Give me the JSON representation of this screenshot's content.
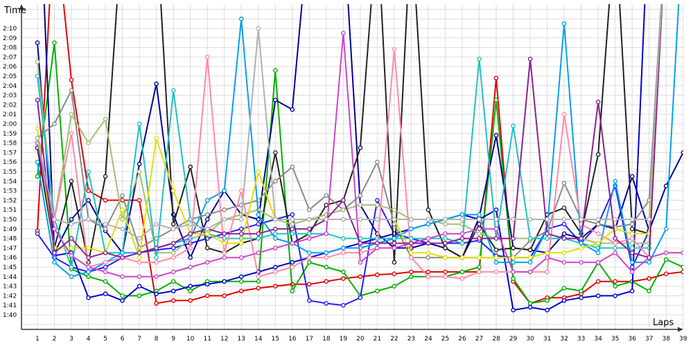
{
  "chart_data": {
    "type": "line",
    "title": "",
    "xlabel": "Laps",
    "ylabel": "Time",
    "grid": true,
    "legend": "none",
    "x": [
      1,
      2,
      3,
      4,
      5,
      6,
      7,
      8,
      9,
      10,
      11,
      12,
      13,
      14,
      15,
      16,
      17,
      18,
      19,
      20,
      21,
      22,
      23,
      24,
      25,
      26,
      27,
      28,
      29,
      30,
      31,
      32,
      33,
      34,
      35,
      36,
      37,
      38,
      39
    ],
    "x_ticks": [
      "1",
      "2",
      "3",
      "4",
      "5",
      "6",
      "7",
      "8",
      "9",
      "10",
      "11",
      "12",
      "13",
      "14",
      "15",
      "16",
      "17",
      "18",
      "19",
      "20",
      "21",
      "22",
      "23",
      "24",
      "25",
      "26",
      "27",
      "28",
      "29",
      "30",
      "31",
      "32",
      "33",
      "34",
      "35",
      "36",
      "37",
      "38",
      "39"
    ],
    "ylim_seconds": [
      93,
      134
    ],
    "y_ticks": [
      "1:40",
      "1:41",
      "1:42",
      "1:43",
      "1:44",
      "1:45",
      "1:46",
      "1:47",
      "1:48",
      "1:49",
      "1:50",
      "1:51",
      "1:52",
      "1:53",
      "1:54",
      "1:55",
      "1:56",
      "1:57",
      "1:58",
      "1:59",
      "2:00",
      "2:01",
      "2:02",
      "2:03",
      "2:04",
      "2:05",
      "2:06",
      "2:07",
      "2:08",
      "2:09",
      "2:10"
    ],
    "y_tick_seconds": [
      100,
      101,
      102,
      103,
      104,
      105,
      106,
      107,
      108,
      109,
      110,
      111,
      112,
      113,
      114,
      115,
      116,
      117,
      118,
      119,
      120,
      121,
      122,
      123,
      124,
      125,
      126,
      127,
      128,
      129,
      130
    ],
    "series": [
      {
        "color": "#e00000",
        "values": [
          108.8,
          142,
          124.6,
          113,
          112,
          112,
          112,
          101.2,
          101.5,
          101.5,
          102,
          102,
          102.5,
          102.8,
          103,
          103.2,
          103.2,
          103.5,
          103.8,
          104,
          104.2,
          104.3,
          104.5,
          104.5,
          104.5,
          104.5,
          104.5,
          124.8,
          103.5,
          101.2,
          101.8,
          101.8,
          102.2,
          103.5,
          103.5,
          103.5,
          103.8,
          104.3,
          104.5
        ]
      },
      {
        "color": "#00b000",
        "values": [
          114.5,
          128.5,
          104.8,
          104,
          103.5,
          102,
          102,
          102.5,
          103.5,
          102.5,
          103.5,
          103.5,
          103.5,
          103.5,
          125.6,
          102.5,
          105.5,
          105,
          104.5,
          102,
          102.5,
          103,
          104,
          104,
          104,
          104.5,
          105,
          122.5,
          103.8,
          101.2,
          101.5,
          102.8,
          102.5,
          105.5,
          103,
          103.5,
          102.5,
          105.8,
          105
        ]
      },
      {
        "color": "#0000cc",
        "values": [
          128.5,
          106.2,
          106.5,
          101.8,
          102.2,
          101.5,
          103,
          102.2,
          102.5,
          103,
          103.2,
          103.5,
          104,
          104.5,
          105,
          105.5,
          106,
          106.5,
          107,
          107.5,
          108,
          108.5,
          109,
          109.5,
          110,
          110.5,
          110,
          111,
          100.5,
          100.8,
          100.5,
          101.5,
          101.8,
          102,
          102,
          102.5,
          143,
          133,
          136.5
        ]
      },
      {
        "color": "#2020ff",
        "values": [
          108.5,
          106,
          105,
          104.5,
          105,
          106,
          106.5,
          106.8,
          107,
          107.5,
          108,
          108.5,
          109,
          109.5,
          110,
          110.5,
          101.5,
          101.2,
          101,
          101.8,
          112,
          108.5,
          108,
          107.5,
          107.5,
          107.5,
          107.8,
          106.2,
          106,
          106,
          109,
          109.5,
          107.5,
          109.5,
          113.5,
          105,
          108.8,
          141,
          141
        ]
      },
      {
        "color": "#000099",
        "values": [
          150,
          106.5,
          110,
          112,
          108.8,
          106.5,
          115.8,
          124.2,
          110.5,
          106,
          110,
          113,
          110.5,
          110,
          122.5,
          121.5,
          141,
          141,
          141,
          111.5,
          108.5,
          107,
          107,
          107.5,
          107,
          106,
          110.2,
          118.8,
          107,
          106.8,
          106.5,
          108.5,
          108,
          109.5,
          109,
          114.5,
          108.8,
          113.5,
          117
        ]
      },
      {
        "color": "#222222",
        "values": [
          117.5,
          107,
          114,
          105.5,
          114.5,
          141,
          141,
          141,
          109.5,
          115.5,
          107,
          106.5,
          107.5,
          108,
          117,
          107.5,
          108.5,
          111.5,
          112,
          117.5,
          141,
          105.5,
          141,
          111,
          107,
          106,
          109.5,
          106.8,
          107,
          106.8,
          110.5,
          111.2,
          108.5,
          116.8,
          141,
          109,
          108.5,
          141,
          141
        ]
      },
      {
        "color": "#8a8a8a",
        "values": [
          118.5,
          120,
          123.5,
          110,
          109,
          112.5,
          107,
          108,
          109,
          110,
          110.5,
          111,
          111.5,
          112,
          114,
          115.5,
          111,
          112.5,
          111,
          112.5,
          116,
          109.5,
          106,
          106,
          106,
          106,
          106,
          106,
          106,
          107.8,
          108.8,
          113.8,
          110,
          109.5,
          109.2,
          109.5,
          112,
          141,
          141
        ]
      },
      {
        "color": "#a0c070",
        "values": [
          126.5,
          110,
          121,
          118,
          120.5,
          110,
          115,
          106.5,
          106.5,
          108,
          108.5,
          110,
          110.5,
          111,
          110,
          109.5,
          110,
          110.5,
          111,
          111.5,
          111.5,
          111,
          110,
          110,
          109.5,
          109.5,
          108.5,
          108,
          108,
          108,
          108,
          108,
          108,
          107.5,
          107.5,
          107.5,
          107.5,
          141,
          141
        ]
      },
      {
        "color": "#20c0c0",
        "values": [
          125,
          110,
          105,
          115,
          106.5,
          106.5,
          120,
          106,
          123.5,
          110,
          108.5,
          108,
          108,
          108,
          108.5,
          108.5,
          108.5,
          108.5,
          108,
          108,
          108,
          108,
          108,
          108,
          108,
          107.5,
          126.8,
          108,
          119.8,
          108,
          108,
          108,
          107.5,
          107,
          107,
          107,
          107,
          141,
          141
        ]
      },
      {
        "color": "#00a0f0",
        "values": [
          116,
          105.5,
          104,
          104.5,
          105.5,
          106.5,
          106.5,
          107,
          107.5,
          108,
          112,
          113,
          131,
          110.5,
          108,
          107.5,
          106.5,
          106.5,
          107,
          107,
          107.5,
          108,
          109,
          109.5,
          110,
          110.5,
          110.5,
          105.5,
          105.5,
          105.5,
          109,
          130.5,
          107.5,
          106.5,
          114,
          105.5,
          105.5,
          109,
          141
        ]
      },
      {
        "color": "#ff88aa",
        "values": [
          118,
          110,
          119,
          105,
          105.5,
          106,
          105.5,
          105.5,
          106,
          107,
          127,
          106.5,
          113,
          104,
          104.5,
          105,
          106,
          106,
          106.5,
          106.5,
          107,
          127.8,
          106,
          104,
          104,
          103.8,
          104.5,
          104.5,
          104.5,
          104.5,
          104.5,
          121,
          109.5,
          108.5,
          107.5,
          108,
          106,
          106.5,
          106.5
        ]
      },
      {
        "color": "#e0e000",
        "values": [
          119.5,
          107,
          107,
          107,
          106.5,
          111,
          106,
          118.5,
          113,
          108.5,
          108.5,
          107.5,
          107.5,
          115,
          110,
          110,
          110,
          110,
          110,
          110,
          110,
          110,
          106.5,
          106.5,
          106,
          106,
          106,
          106,
          106,
          106,
          106.5,
          106.5,
          107,
          107.5,
          109,
          108.5,
          108.5,
          141,
          141
        ]
      },
      {
        "color": "#cc44cc",
        "values": [
          118,
          109,
          106.2,
          105,
          104.5,
          104,
          104,
          104,
          104.5,
          105,
          105.5,
          106,
          106,
          106.5,
          107,
          107.5,
          108,
          108.5,
          129.5,
          105.5,
          107,
          107,
          107.5,
          108,
          108.5,
          108.5,
          109,
          109,
          104.5,
          104.5,
          106,
          105.5,
          105.5,
          105.5,
          106.5,
          104.5,
          106,
          106.5,
          106.5
        ]
      },
      {
        "color": "#8a2090",
        "values": [
          122.5,
          106.5,
          108,
          106,
          106.5,
          106,
          106.5,
          107,
          107.5,
          108.5,
          109,
          108.5,
          108.5,
          108.5,
          109,
          109,
          109,
          110,
          112,
          107.5,
          107.5,
          107.5,
          107.5,
          107.5,
          107.5,
          108,
          108,
          108,
          108,
          126.8,
          108.5,
          108,
          108,
          122.3,
          108,
          106.5,
          106,
          141,
          141
        ]
      },
      {
        "color": "#b0b0b0",
        "values": [
          118.5,
          110,
          109.5,
          110,
          109.5,
          109,
          108,
          109.5,
          109,
          109.5,
          109,
          110,
          110,
          130,
          110,
          110,
          110,
          110,
          110,
          110,
          110,
          110,
          110,
          110,
          110,
          110,
          110,
          110,
          110,
          110,
          110,
          110,
          110,
          110,
          110,
          110,
          110,
          141,
          141
        ]
      }
    ]
  }
}
